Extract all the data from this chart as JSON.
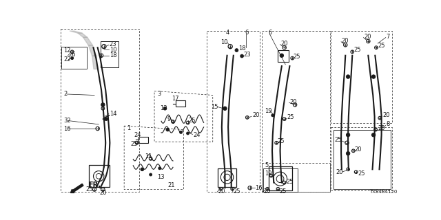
{
  "bg_color": "#ffffff",
  "line_color": "#1a1a1a",
  "diagram_code": "TX84B4120",
  "gray": "#888888",
  "lgray": "#cccccc",
  "fs": 6.0,
  "fs_sm": 5.0
}
